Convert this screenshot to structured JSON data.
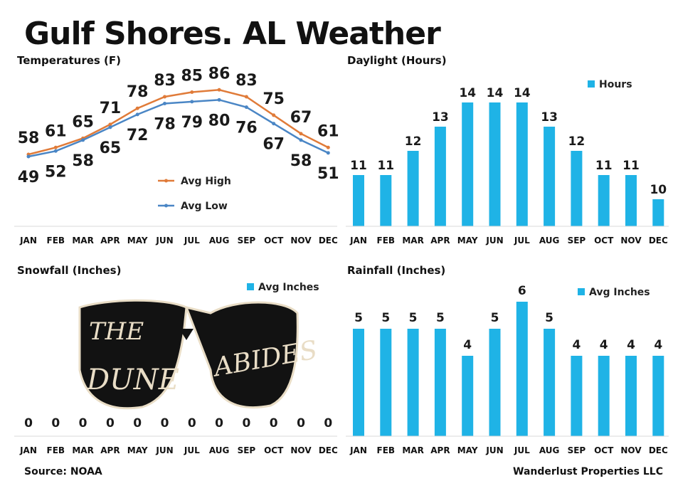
{
  "title": "Gulf Shores. AL Weather",
  "colors": {
    "high": "#e07b39",
    "low": "#4a86c5",
    "bar": "#1fb3e6",
    "axis": "#d9d9d9"
  },
  "months": [
    "JAN",
    "FEB",
    "MAR",
    "APR",
    "MAY",
    "JUN",
    "JUL",
    "AUG",
    "SEP",
    "OCT",
    "NOV",
    "DEC"
  ],
  "footer": {
    "source": "Source: NOAA",
    "credit": "Wanderlust Properties LLC"
  },
  "logo": {
    "text_line1": "THE",
    "text_line2": "DUNE",
    "text_line3": "ABIDES",
    "icon": "sunglasses-logo"
  },
  "chart_data": [
    {
      "id": "temperatures",
      "type": "line",
      "title": "Temperatures (F)",
      "categories": [
        "JAN",
        "FEB",
        "MAR",
        "APR",
        "MAY",
        "JUN",
        "JUL",
        "AUG",
        "SEP",
        "OCT",
        "NOV",
        "DEC"
      ],
      "series": [
        {
          "name": "Avg High",
          "values": [
            58,
            61,
            65,
            71,
            78,
            83,
            85,
            86,
            83,
            75,
            67,
            61
          ]
        },
        {
          "name": "Avg Low",
          "values": [
            49,
            52,
            58,
            65,
            72,
            78,
            79,
            80,
            76,
            67,
            58,
            51
          ]
        }
      ],
      "legend": "center-right"
    },
    {
      "id": "daylight",
      "type": "bar",
      "title": "Daylight (Hours)",
      "categories": [
        "JAN",
        "FEB",
        "MAR",
        "APR",
        "MAY",
        "JUN",
        "JUL",
        "AUG",
        "SEP",
        "OCT",
        "NOV",
        "DEC"
      ],
      "series": [
        {
          "name": "Hours",
          "values": [
            11,
            11,
            12,
            13,
            14,
            14,
            14,
            13,
            12,
            11,
            11,
            10
          ]
        }
      ],
      "legend": "top-right"
    },
    {
      "id": "snowfall",
      "type": "bar",
      "title": "Snowfall (Inches)",
      "categories": [
        "JAN",
        "FEB",
        "MAR",
        "APR",
        "MAY",
        "JUN",
        "JUL",
        "AUG",
        "SEP",
        "OCT",
        "NOV",
        "DEC"
      ],
      "series": [
        {
          "name": "Avg Inches",
          "values": [
            0,
            0,
            0,
            0,
            0,
            0,
            0,
            0,
            0,
            0,
            0,
            0
          ]
        }
      ],
      "legend": "top-right"
    },
    {
      "id": "rainfall",
      "type": "bar",
      "title": "Rainfall (Inches)",
      "categories": [
        "JAN",
        "FEB",
        "MAR",
        "APR",
        "MAY",
        "JUN",
        "JUL",
        "AUG",
        "SEP",
        "OCT",
        "NOV",
        "DEC"
      ],
      "series": [
        {
          "name": "Avg Inches",
          "values": [
            5,
            5,
            5,
            5,
            4,
            5,
            6,
            5,
            4,
            4,
            4,
            4
          ]
        }
      ],
      "legend": "top-right"
    }
  ]
}
